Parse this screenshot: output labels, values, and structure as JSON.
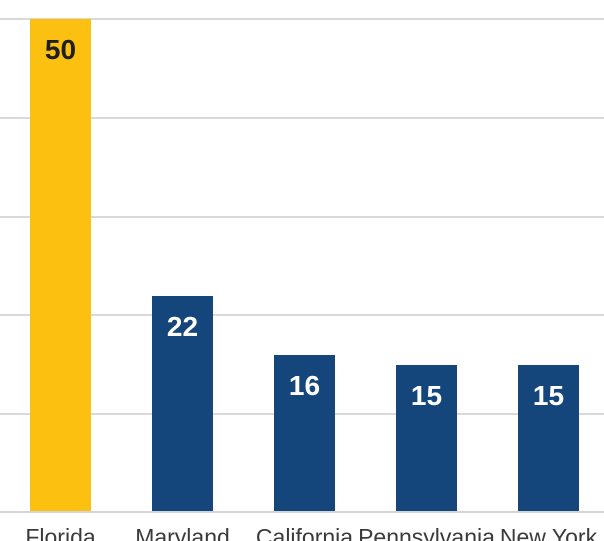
{
  "chart_data": {
    "type": "bar",
    "title": "",
    "xlabel": "",
    "ylabel": "",
    "categories": [
      "Florida",
      "Maryland",
      "California",
      "Pennsylvania",
      "New York"
    ],
    "values": [
      50,
      22,
      16,
      15,
      15
    ],
    "data_labels": [
      "50",
      "22",
      "16",
      "15",
      "15"
    ],
    "bar_colors": [
      "#FCC011",
      "#15467B",
      "#15467B",
      "#15467B",
      "#15467B"
    ],
    "data_label_colors": [
      "#1F1F1F",
      "#FFFFFF",
      "#FFFFFF",
      "#FFFFFF",
      "#FFFFFF"
    ],
    "data_label_position": "inside-end",
    "ylim": [
      0,
      50
    ],
    "gridline_values": [
      10,
      20,
      30,
      40,
      50
    ],
    "grid": "horizontal-only",
    "legend_position": "none",
    "y_axis_tick_labels_visible": false,
    "x_axis_labels_partially_cropped": true
  },
  "colors": {
    "background": "#FFFFFF",
    "gridline": "#D9D9D9",
    "axis_line": "#D4D4D4",
    "accent_yellow": "#FCC011",
    "accent_blue": "#15467B",
    "axis_label_text": "#3B3B3B"
  }
}
